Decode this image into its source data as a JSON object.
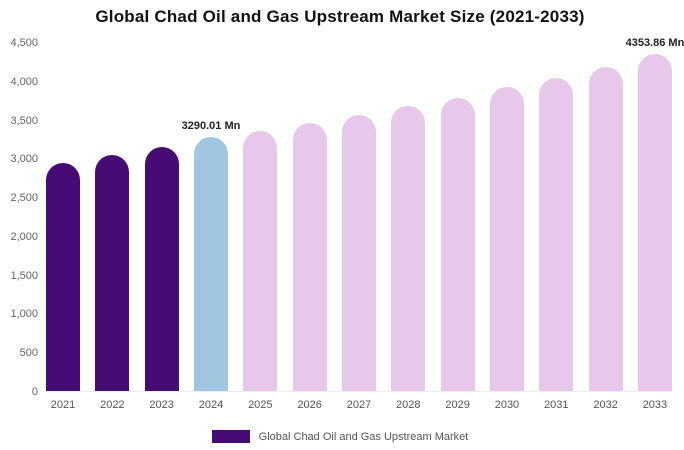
{
  "title": "Global Chad Oil and Gas Upstream Market Size (2021-2033)",
  "legend": {
    "label": "Global Chad Oil and Gas Upstream Market",
    "swatch_color": "#470b74"
  },
  "chart_data": {
    "type": "bar",
    "title": "Global Chad Oil and Gas Upstream Market Size (2021-2033)",
    "xlabel": "",
    "ylabel": "",
    "ylim": [
      0,
      4500
    ],
    "ytick_step": 500,
    "grid": false,
    "legend_position": "bottom",
    "unit": "Mn",
    "categories": [
      "2021",
      "2022",
      "2023",
      "2024",
      "2025",
      "2026",
      "2027",
      "2028",
      "2029",
      "2030",
      "2031",
      "2032",
      "2033"
    ],
    "values": [
      2950,
      3055,
      3160,
      3290.01,
      3360,
      3465,
      3570,
      3680,
      3795,
      3930,
      4050,
      4190,
      4353.86
    ],
    "colors": {
      "historical": "#470b74",
      "highlight": "#a0c6e2",
      "forecast": "#e8c8ea"
    },
    "color_map": [
      "historical",
      "historical",
      "historical",
      "highlight",
      "forecast",
      "forecast",
      "forecast",
      "forecast",
      "forecast",
      "forecast",
      "forecast",
      "forecast",
      "forecast"
    ],
    "annotations": [
      {
        "category": "2024",
        "text": "3290.01 Mn"
      },
      {
        "category": "2033",
        "text": "4353.86 Mn"
      }
    ]
  }
}
